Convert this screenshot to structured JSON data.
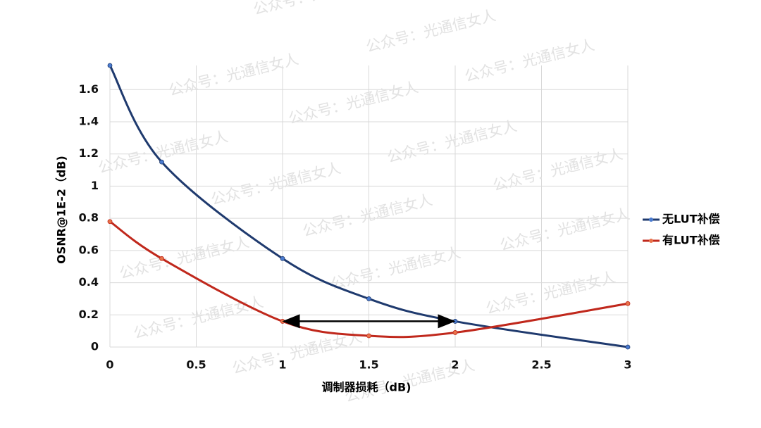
{
  "chart_data": {
    "type": "line",
    "xlabel": "调制器损耗（dB)",
    "ylabel": "OSNR@1E-2（dB)",
    "x": [
      0,
      0.3,
      1,
      1.5,
      2,
      3
    ],
    "series": [
      {
        "name": "无LUT补偿",
        "color": "#1f3a6e",
        "values": [
          1.75,
          1.15,
          0.55,
          0.3,
          0.16,
          0
        ]
      },
      {
        "name": "有LUT补偿",
        "color": "#c0281c",
        "values": [
          0.78,
          0.55,
          0.16,
          0.07,
          0.09,
          0.27
        ]
      }
    ],
    "xlim": [
      0,
      3
    ],
    "xticks": [
      0,
      0.5,
      1,
      1.5,
      2,
      2.5,
      3
    ],
    "ylim": [
      0,
      1.75
    ],
    "yticks": [
      0,
      0.2,
      0.4,
      0.6,
      0.8,
      1,
      1.2,
      1.4,
      1.6
    ],
    "grid": true,
    "legend": "right",
    "annotations": [
      {
        "type": "double-arrow",
        "x": [
          1,
          2
        ],
        "y": 0.16
      }
    ],
    "watermark": "公众号：光通信女人"
  }
}
